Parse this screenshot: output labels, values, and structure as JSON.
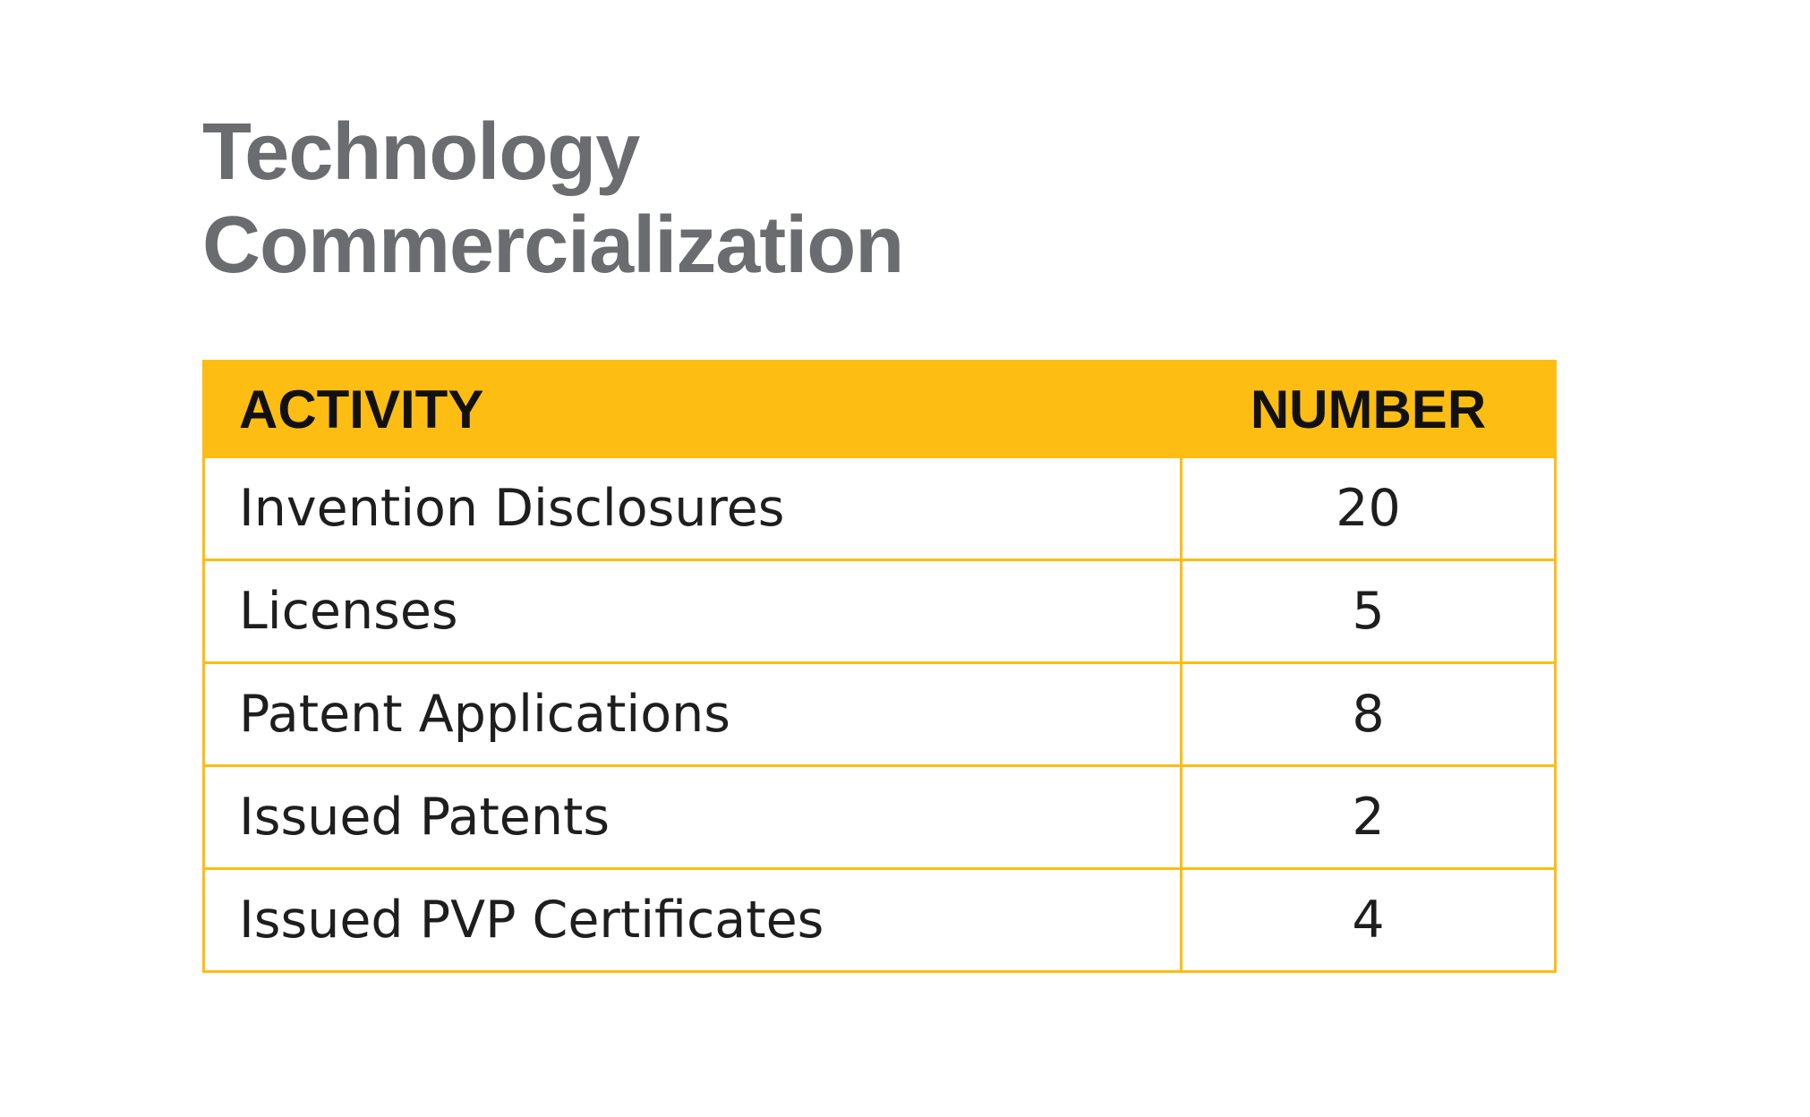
{
  "title": {
    "line1": "Technology",
    "line2": "Commercialization"
  },
  "table": {
    "headers": {
      "activity": "ACTIVITY",
      "number": "NUMBER"
    },
    "rows": [
      {
        "activity": "Invention Disclosures",
        "number": "20"
      },
      {
        "activity": "Licenses",
        "number": "5"
      },
      {
        "activity": "Patent Applications",
        "number": "8"
      },
      {
        "activity": "Issued Patents",
        "number": "2"
      },
      {
        "activity": "Issued PVP Certificates",
        "number": "4"
      }
    ]
  },
  "colors": {
    "header_background": "#fdbd12",
    "border": "#fdbd12",
    "title_text": "#6b6c6f",
    "body_text": "#1e1e1e"
  }
}
